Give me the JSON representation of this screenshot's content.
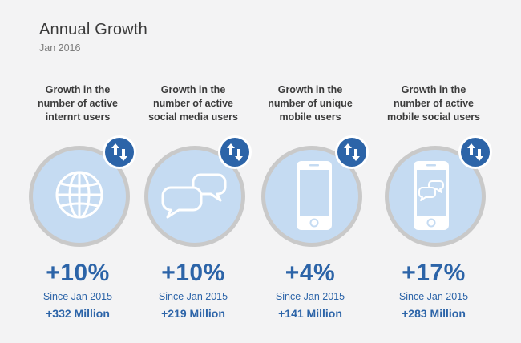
{
  "header": {
    "title": "Annual Growth",
    "subtitle": "Jan 2016"
  },
  "colors": {
    "accent": "#2c64a8",
    "circle_fill": "#c5dbf2",
    "circle_ring": "#c9c9c9",
    "heading_text": "#3b3b3b"
  },
  "stats": [
    {
      "heading": "Growth in the\nnumber of active\ninternrt users",
      "icon": "globe-icon",
      "change": "+10%",
      "since": "Since Jan 2015",
      "amount": "+332 Million"
    },
    {
      "heading": "Growth in the\nnumber of active\nsocial media users",
      "icon": "speech-bubbles-icon",
      "change": "+10%",
      "since": "Since Jan 2015",
      "amount": "+219 Million"
    },
    {
      "heading": "Growth in the\nnumber of unique\nmobile users",
      "icon": "smartphone-icon",
      "change": "+4%",
      "since": "Since Jan 2015",
      "amount": "+141 Million"
    },
    {
      "heading": "Growth in the\nnumber of active\nmobile social users",
      "icon": "smartphone-chat-icon",
      "change": "+17%",
      "since": "Since Jan 2015",
      "amount": "+283 Million"
    }
  ]
}
